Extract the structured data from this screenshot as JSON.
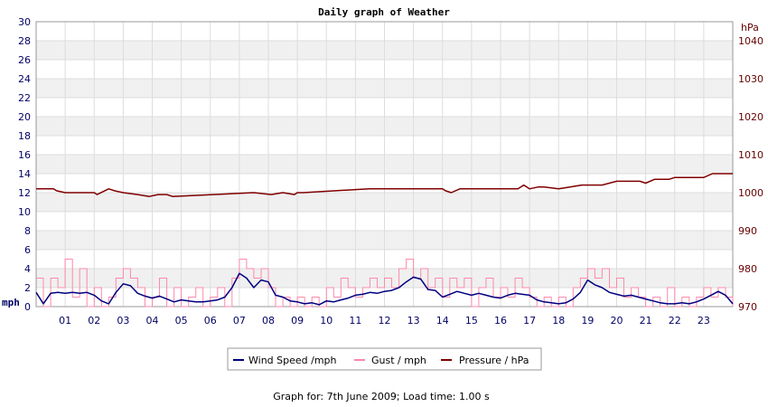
{
  "chart_data": {
    "type": "line",
    "title": "Daily graph of Weather",
    "x_axis": {
      "range": [
        0,
        24
      ],
      "tick_labels": [
        "01",
        "02",
        "03",
        "04",
        "05",
        "06",
        "07",
        "08",
        "09",
        "10",
        "11",
        "12",
        "13",
        "14",
        "15",
        "16",
        "17",
        "18",
        "19",
        "20",
        "21",
        "22",
        "23"
      ]
    },
    "y_left": {
      "unit": "mph",
      "range": [
        0,
        30
      ],
      "ticks": [
        0,
        2,
        4,
        6,
        8,
        10,
        12,
        14,
        16,
        18,
        20,
        22,
        24,
        26,
        28,
        30
      ]
    },
    "y_right": {
      "unit": "hPa",
      "range": [
        970,
        1045
      ],
      "ticks": [
        970,
        980,
        990,
        1000,
        1010,
        1020,
        1030,
        1040
      ]
    },
    "grid": true,
    "legend": {
      "position": "bottom"
    },
    "series": [
      {
        "name": "Wind Speed /mph",
        "axis": "left",
        "color": "#000080",
        "x": [
          0,
          0.25,
          0.5,
          0.75,
          1,
          1.25,
          1.5,
          1.75,
          2,
          2.25,
          2.5,
          2.75,
          3,
          3.25,
          3.5,
          3.75,
          4,
          4.25,
          4.5,
          4.75,
          5,
          5.25,
          5.5,
          5.75,
          6,
          6.25,
          6.5,
          6.75,
          7,
          7.25,
          7.5,
          7.75,
          8,
          8.25,
          8.5,
          8.75,
          9,
          9.25,
          9.5,
          9.75,
          10,
          10.25,
          10.5,
          10.75,
          11,
          11.25,
          11.5,
          11.75,
          12,
          12.25,
          12.5,
          12.75,
          13,
          13.25,
          13.5,
          13.75,
          14,
          14.25,
          14.5,
          14.75,
          15,
          15.25,
          15.5,
          15.75,
          16,
          16.25,
          16.5,
          16.75,
          17,
          17.25,
          17.5,
          17.75,
          18,
          18.25,
          18.5,
          18.75,
          19,
          19.25,
          19.5,
          19.75,
          20,
          20.25,
          20.5,
          20.75,
          21,
          21.25,
          21.5,
          21.75,
          22,
          22.25,
          22.5,
          22.75,
          23,
          23.25,
          23.5,
          23.75,
          24
        ],
        "y": [
          1.5,
          0.3,
          1.4,
          1.5,
          1.4,
          1.5,
          1.4,
          1.5,
          1.2,
          0.6,
          0.3,
          1.5,
          2.4,
          2.2,
          1.4,
          1.1,
          0.9,
          1.1,
          0.8,
          0.5,
          0.7,
          0.6,
          0.5,
          0.5,
          0.6,
          0.7,
          1.0,
          2.0,
          3.5,
          3.0,
          2.0,
          2.8,
          2.6,
          1.2,
          1.0,
          0.6,
          0.5,
          0.3,
          0.4,
          0.2,
          0.6,
          0.5,
          0.7,
          0.9,
          1.2,
          1.3,
          1.5,
          1.4,
          1.6,
          1.7,
          2.0,
          2.6,
          3.1,
          2.9,
          1.8,
          1.7,
          1.0,
          1.3,
          1.6,
          1.4,
          1.2,
          1.4,
          1.2,
          1.0,
          0.9,
          1.2,
          1.4,
          1.3,
          1.2,
          0.7,
          0.5,
          0.4,
          0.3,
          0.4,
          0.8,
          1.5,
          2.8,
          2.3,
          2.0,
          1.5,
          1.3,
          1.1,
          1.2,
          1.0,
          0.8,
          0.6,
          0.4,
          0.3,
          0.3,
          0.4,
          0.3,
          0.5,
          0.8,
          1.2,
          1.6,
          1.2,
          0.3
        ]
      },
      {
        "name": "Gust / mph",
        "axis": "left",
        "color": "#ff88aa",
        "x": [
          0,
          0.25,
          0.5,
          0.75,
          1,
          1.25,
          1.5,
          1.75,
          2,
          2.25,
          2.5,
          2.75,
          3,
          3.25,
          3.5,
          3.75,
          4,
          4.25,
          4.5,
          4.75,
          5,
          5.25,
          5.5,
          5.75,
          6,
          6.25,
          6.5,
          6.75,
          7,
          7.25,
          7.5,
          7.75,
          8,
          8.25,
          8.5,
          8.75,
          9,
          9.25,
          9.5,
          9.75,
          10,
          10.25,
          10.5,
          10.75,
          11,
          11.25,
          11.5,
          11.75,
          12,
          12.25,
          12.5,
          12.75,
          13,
          13.25,
          13.5,
          13.75,
          14,
          14.25,
          14.5,
          14.75,
          15,
          15.25,
          15.5,
          15.75,
          16,
          16.25,
          16.5,
          16.75,
          17,
          17.25,
          17.5,
          17.75,
          18,
          18.25,
          18.5,
          18.75,
          19,
          19.25,
          19.5,
          19.75,
          20,
          20.25,
          20.5,
          20.75,
          21,
          21.25,
          21.5,
          21.75,
          22,
          22.25,
          22.5,
          22.75,
          23,
          23.25,
          23.5,
          23.75,
          24
        ],
        "y": [
          3,
          0,
          3,
          2,
          5,
          1,
          4,
          0,
          2,
          0,
          1,
          3,
          4,
          3,
          2,
          0,
          1,
          3,
          0,
          2,
          0,
          1,
          2,
          0,
          1,
          2,
          0,
          3,
          5,
          4,
          3,
          4,
          2,
          0,
          1,
          0,
          1,
          0,
          1,
          0,
          2,
          1,
          3,
          2,
          1,
          2,
          3,
          2,
          3,
          2,
          4,
          5,
          3,
          4,
          2,
          3,
          1,
          3,
          2,
          3,
          0,
          2,
          3,
          1,
          2,
          1,
          3,
          2,
          1,
          0,
          1,
          0,
          1,
          0,
          2,
          3,
          4,
          3,
          4,
          2,
          3,
          1,
          2,
          1,
          0,
          1,
          0,
          2,
          0,
          1,
          0,
          1,
          2,
          1,
          2,
          1,
          0
        ]
      },
      {
        "name": "Pressure / hPa",
        "axis": "right",
        "color": "#800000",
        "x": [
          0,
          0.6,
          0.7,
          1,
          2,
          2.1,
          2.5,
          2.7,
          3,
          3.5,
          3.9,
          4.2,
          4.5,
          4.7,
          7.5,
          8.1,
          8.5,
          8.9,
          9,
          9.2,
          11,
          11.5,
          13,
          13.2,
          14,
          14.1,
          14.3,
          14.6,
          15,
          16.6,
          16.8,
          17,
          17.3,
          17.5,
          18,
          18.4,
          18.8,
          19,
          19.5,
          20,
          20.7,
          20.8,
          21,
          21.3,
          21.8,
          22,
          22.5,
          23,
          23.3,
          23.5,
          24
        ],
        "y": [
          1001,
          1001,
          1000.5,
          1000,
          1000,
          999.5,
          1001,
          1000.5,
          1000,
          999.5,
          999,
          999.5,
          999.5,
          999,
          1000,
          999.5,
          1000,
          999.5,
          1000,
          1000,
          1000.8,
          1001,
          1001,
          1001,
          1001,
          1000.5,
          1000,
          1001,
          1001,
          1001,
          1002,
          1001,
          1001.5,
          1001.5,
          1001,
          1001.5,
          1002,
          1002,
          1002,
          1003,
          1003,
          1003,
          1002.5,
          1003.5,
          1003.5,
          1004,
          1004,
          1004,
          1005,
          1005,
          1005
        ]
      }
    ],
    "footer": "Graph for: 7th June 2009; Load time: 1.00 s"
  }
}
